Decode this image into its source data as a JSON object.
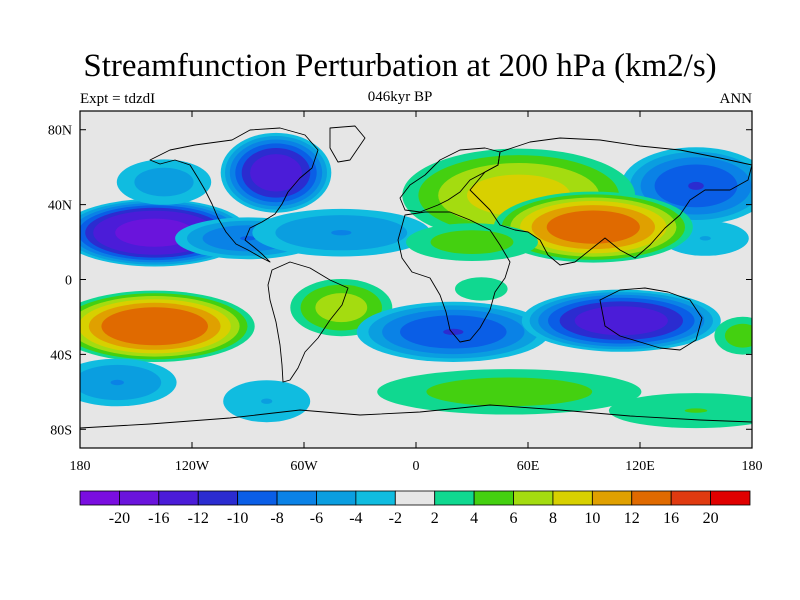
{
  "title": "Streamfunction Perturbation at 200 hPa (km2/s)",
  "subtitle_left": "Expt = tdzdI",
  "subtitle_center": "046kyr BP",
  "subtitle_right": "ANN",
  "map": {
    "lon_range": [
      -180,
      180
    ],
    "lat_range": [
      -90,
      90
    ],
    "lat_ticks": [
      {
        "value": 80,
        "label": "80N"
      },
      {
        "value": 40,
        "label": "40N"
      },
      {
        "value": 0,
        "label": "0"
      },
      {
        "value": -40,
        "label": "40S"
      },
      {
        "value": -80,
        "label": "80S"
      }
    ],
    "lon_ticks": [
      {
        "value": -180,
        "label": "180"
      },
      {
        "value": -120,
        "label": "120W"
      },
      {
        "value": -60,
        "label": "60W"
      },
      {
        "value": 0,
        "label": "0"
      },
      {
        "value": 60,
        "label": "60E"
      },
      {
        "value": 120,
        "label": "120E"
      },
      {
        "value": 180,
        "label": "180"
      }
    ],
    "anomalies": [
      {
        "lon": -140,
        "lat": 25,
        "rlon": 42,
        "rlat": 15,
        "amp": -18
      },
      {
        "lon": -90,
        "lat": 22,
        "rlon": 35,
        "rlat": 10,
        "amp": -8
      },
      {
        "lon": -40,
        "lat": 25,
        "rlon": 45,
        "rlat": 12,
        "amp": -6
      },
      {
        "lon": -75,
        "lat": 57,
        "rlon": 25,
        "rlat": 18,
        "amp": -14
      },
      {
        "lon": -135,
        "lat": 52,
        "rlon": 25,
        "rlat": 12,
        "amp": -5
      },
      {
        "lon": 150,
        "lat": 50,
        "rlon": 35,
        "rlat": 18,
        "amp": -10
      },
      {
        "lon": 155,
        "lat": 22,
        "rlon": 25,
        "rlat": 10,
        "amp": -4
      },
      {
        "lon": 55,
        "lat": 45,
        "rlon": 55,
        "rlat": 22,
        "amp": 9
      },
      {
        "lon": 95,
        "lat": 28,
        "rlon": 45,
        "rlat": 16,
        "amp": 14
      },
      {
        "lon": 30,
        "lat": 20,
        "rlon": 35,
        "rlat": 10,
        "amp": 5
      },
      {
        "lon": -140,
        "lat": -25,
        "rlon": 45,
        "rlat": 16,
        "amp": 15
      },
      {
        "lon": -40,
        "lat": -15,
        "rlon": 25,
        "rlat": 14,
        "amp": 7
      },
      {
        "lon": 35,
        "lat": -5,
        "rlon": 18,
        "rlat": 8,
        "amp": 3
      },
      {
        "lon": 20,
        "lat": -28,
        "rlon": 45,
        "rlat": 14,
        "amp": -10
      },
      {
        "lon": 110,
        "lat": -22,
        "rlon": 45,
        "rlat": 14,
        "amp": -14
      },
      {
        "lon": -160,
        "lat": -55,
        "rlon": 30,
        "rlat": 12,
        "amp": -6
      },
      {
        "lon": -80,
        "lat": -65,
        "rlon": 25,
        "rlat": 12,
        "amp": -4
      },
      {
        "lon": 50,
        "lat": -60,
        "rlon": 70,
        "rlat": 12,
        "amp": 5
      },
      {
        "lon": 150,
        "lat": -70,
        "rlon": 50,
        "rlat": 10,
        "amp": 4
      },
      {
        "lon": 175,
        "lat": -30,
        "rlon": 15,
        "rlat": 10,
        "amp": 5
      }
    ]
  },
  "colorbar": {
    "colors": [
      "#7a0ee0",
      "#6a14dc",
      "#4b1cd8",
      "#2b2cd0",
      "#0a5ee6",
      "#0a82e6",
      "#0a9ee0",
      "#10bce0",
      "#e6e6e6",
      "#10d890",
      "#44d010",
      "#a4dc10",
      "#d8d000",
      "#e0a000",
      "#e06a00",
      "#e03a10",
      "#e00000"
    ],
    "labels": [
      "-20",
      "-16",
      "-12",
      "-10",
      "-8",
      "-6",
      "-4",
      "-2",
      "2",
      "4",
      "6",
      "8",
      "10",
      "12",
      "16",
      "20"
    ],
    "levels": [
      -20,
      -16,
      -12,
      -10,
      -8,
      -6,
      -4,
      -2,
      2,
      4,
      6,
      8,
      10,
      12,
      16,
      20
    ]
  }
}
